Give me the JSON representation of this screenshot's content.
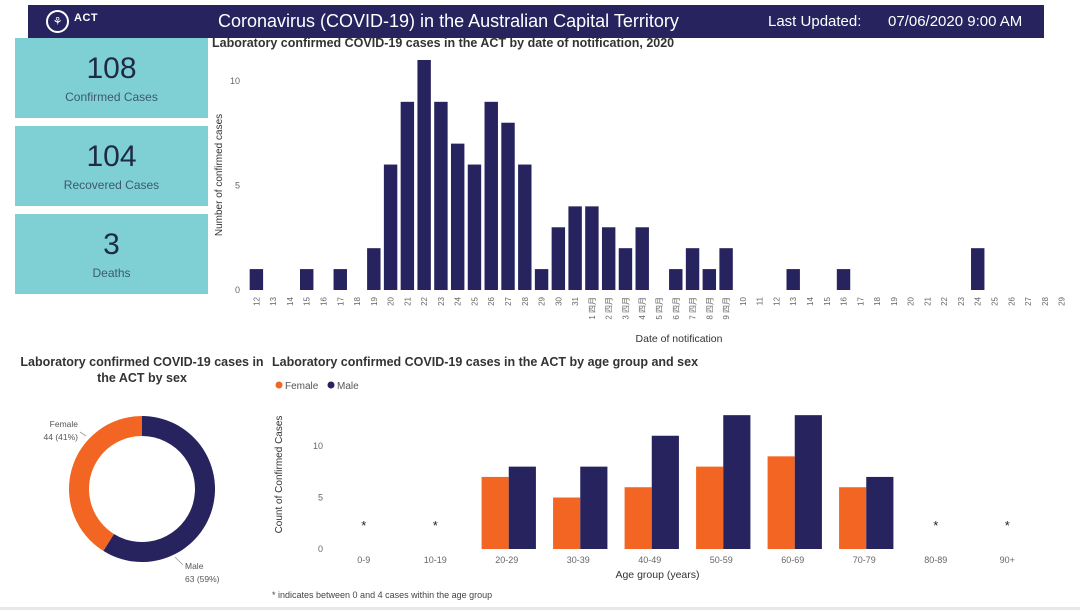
{
  "header": {
    "logo_text": "ACT",
    "title": "Coronavirus (COVID-19) in the Australian Capital Territory",
    "last_updated_label": "Last Updated:",
    "last_updated_value": "07/06/2020 9:00 AM",
    "bar_color": "#27235e"
  },
  "cards": [
    {
      "value": "108",
      "label": "Confirmed Cases"
    },
    {
      "value": "104",
      "label": "Recovered Cases"
    },
    {
      "value": "3",
      "label": "Deaths"
    }
  ],
  "chart_data": [
    {
      "type": "bar",
      "title": "Laboratory confirmed COVID-19 cases in the ACT by date of notification, 2020",
      "xlabel": "Date of notification",
      "ylabel": "Number of confirmed cases",
      "ylim": [
        0,
        11
      ],
      "yticks": [
        0,
        5,
        10
      ],
      "color": "#27235e",
      "categories": [
        "12",
        "13",
        "14",
        "15",
        "16",
        "17",
        "18",
        "19",
        "20",
        "21",
        "22",
        "23",
        "24",
        "25",
        "26",
        "27",
        "28",
        "29",
        "30",
        "31",
        "1 四月",
        "2 四月",
        "3 四月",
        "4 四月",
        "5 四月",
        "6 四月",
        "7 四月",
        "8 四月",
        "9 四月",
        "10",
        "11",
        "12",
        "13",
        "14",
        "15",
        "16",
        "17",
        "18",
        "19",
        "20",
        "21",
        "22",
        "23",
        "24",
        "25",
        "26",
        "27",
        "28",
        "29"
      ],
      "values": [
        1,
        0,
        0,
        1,
        0,
        1,
        0,
        2,
        6,
        9,
        11,
        9,
        7,
        6,
        9,
        8,
        6,
        1,
        3,
        4,
        4,
        3,
        2,
        3,
        0,
        1,
        2,
        1,
        2,
        0,
        0,
        0,
        1,
        0,
        0,
        1,
        0,
        0,
        0,
        0,
        0,
        0,
        0,
        2,
        0,
        0,
        0,
        0,
        0
      ]
    },
    {
      "type": "pie",
      "title": "Laboratory confirmed COVID-19 cases in the ACT by sex",
      "slices": [
        {
          "name": "Female",
          "value": 44,
          "label": "Female",
          "sublabel": "44 (41%)",
          "color": "#f26522"
        },
        {
          "name": "Male",
          "value": 63,
          "label": "Male",
          "sublabel": "63 (59%)",
          "color": "#27235e"
        }
      ]
    },
    {
      "type": "bar",
      "title": "Laboratory confirmed COVID-19 cases in the ACT by age group and sex",
      "xlabel": "Age group (years)",
      "ylabel": "Count of Confirmed Cases",
      "ylim": [
        0,
        13.5
      ],
      "yticks": [
        0,
        5,
        10
      ],
      "legend_position": "top-left",
      "categories": [
        "0-9",
        "10-19",
        "20-29",
        "30-39",
        "40-49",
        "50-59",
        "60-69",
        "70-79",
        "80-89",
        "90+"
      ],
      "suppressed_marker": "*",
      "suppressed": [
        true,
        true,
        false,
        false,
        false,
        false,
        false,
        false,
        true,
        true
      ],
      "series": [
        {
          "name": "Female",
          "color": "#f26522",
          "values": [
            0,
            0,
            7,
            5,
            6,
            8,
            9,
            6,
            0,
            0
          ]
        },
        {
          "name": "Male",
          "color": "#27235e",
          "values": [
            0,
            0,
            8,
            8,
            11,
            13,
            13,
            7,
            0,
            0
          ]
        }
      ],
      "footnote": "* indicates between 0 and 4 cases within the age group"
    }
  ]
}
